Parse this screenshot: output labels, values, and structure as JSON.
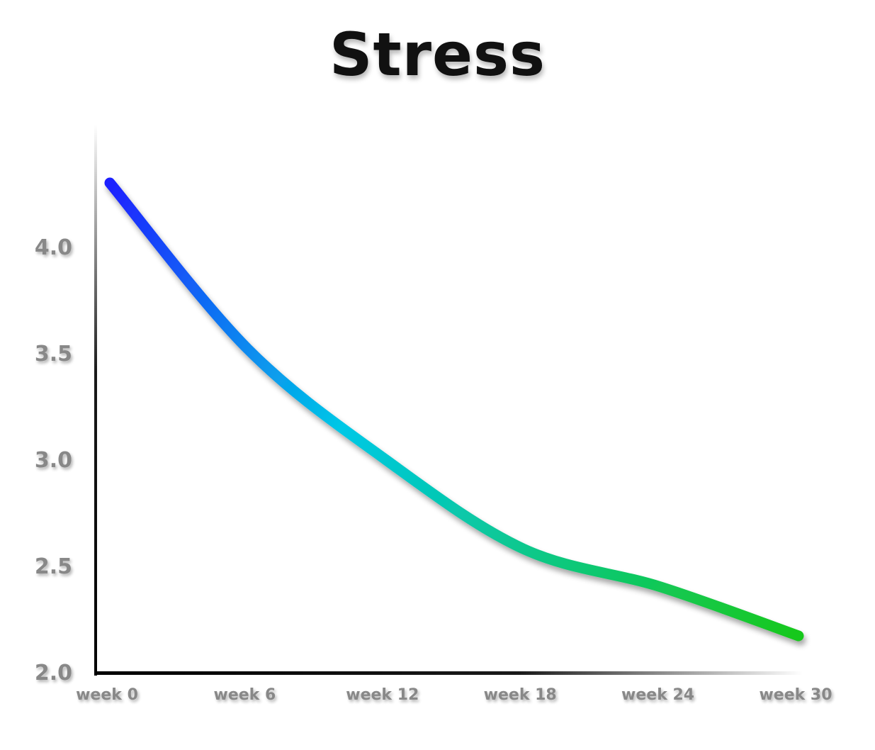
{
  "chart_data": {
    "type": "line",
    "title": "Stress",
    "xlabel": "",
    "ylabel": "",
    "x": [
      "week 0",
      "week 6",
      "week 12",
      "week 18",
      "week 24",
      "week 30"
    ],
    "x_values": [
      0,
      6,
      12,
      18,
      24,
      30
    ],
    "series": [
      {
        "values": [
          4.3,
          3.52,
          3.0,
          2.58,
          2.4,
          2.17
        ]
      }
    ],
    "ylim": [
      2.0,
      4.4
    ],
    "xlim": [
      0,
      30
    ],
    "yticks": [
      "2.0",
      "2.5",
      "3.0",
      "3.5",
      "4.0"
    ],
    "grid": false,
    "line_gradient": [
      "#1e1eff",
      "#00c8e6",
      "#19c819"
    ]
  }
}
